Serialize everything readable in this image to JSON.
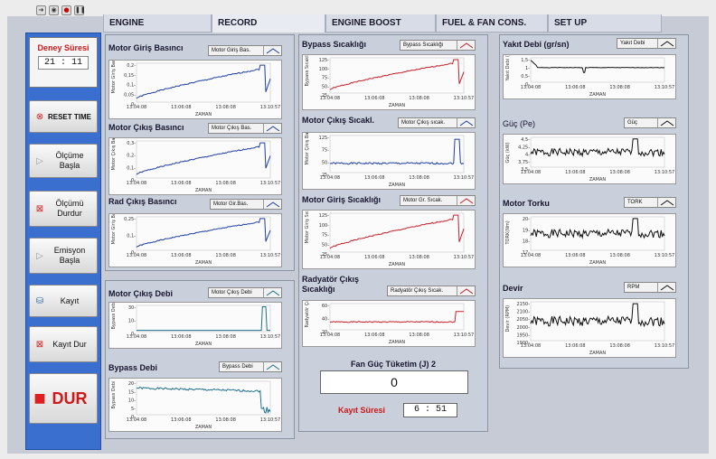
{
  "toolbar": {
    "icons": [
      "arrow-icon",
      "stop-icon",
      "record-icon",
      "pause-icon"
    ]
  },
  "tabs": [
    "ENGINE",
    "RECORD",
    "ENGINE BOOST",
    "FUEL & FAN CONS.",
    "SET UP"
  ],
  "left": {
    "deney_title": "Deney Süresi",
    "deney_value": "21  :  11",
    "buttons": [
      {
        "name": "reset-time-button",
        "label": "RESET TIME",
        "icon": "x-circle-icon"
      },
      {
        "name": "olcume-basla-button",
        "label": "Ölçüme Başla",
        "icon": "play-icon"
      },
      {
        "name": "olcumu-durdur-button",
        "label": "Ölçümü Durdur",
        "icon": "stop-square-icon"
      },
      {
        "name": "emisyon-basla-button",
        "label": "Emisyon Başla",
        "icon": "play-icon"
      },
      {
        "name": "kayit-button",
        "label": "Kayıt",
        "icon": "disk-icon"
      },
      {
        "name": "kayit-dur-button",
        "label": "Kayıt Dur",
        "icon": "stop-square-icon"
      },
      {
        "name": "dur-button",
        "label": "DUR",
        "icon": "stop-square-icon"
      }
    ]
  },
  "xticks": [
    "13:04:08",
    "13:06:08",
    "13:08:08",
    "13:10:57"
  ],
  "xlabel": "ZAMAN",
  "graphs": [
    {
      "id": "g1",
      "title": "Motor Giriş Basıncı",
      "legend": "Motor Giriş Bas.",
      "ylabel": "Motor Giriş Bas.",
      "yticks": [
        "0,2-",
        "0,15-",
        "0,1-",
        "0,05-",
        "0-"
      ],
      "color": "#1d3fa6"
    },
    {
      "id": "g2",
      "title": "Motor Çıkış Basıncı",
      "legend": "Motor Çıkış Bas.",
      "ylabel": "Motor Çıkış Bas.",
      "yticks": [
        "0,3-",
        "0,2-",
        "0,1-",
        "0-"
      ],
      "color": "#1d3fa6"
    },
    {
      "id": "g3",
      "title": "Rad Çıkış Basıncı",
      "legend": "Motor Gir.Bas.",
      "ylabel": "Motor Giriş Bas.",
      "yticks": [
        "0,25-",
        "0,1-",
        "0-"
      ],
      "color": "#1d3fa6"
    },
    {
      "id": "g4",
      "title": "Motor Çıkış Debi",
      "legend": "Motor Çıkış Debi",
      "ylabel": "Bypass Debi",
      "yticks": [
        "30-",
        "10-",
        "0-"
      ],
      "color": "#1e6f8f"
    },
    {
      "id": "g5",
      "title": "Bypass Debi",
      "legend": "Bypass Debi",
      "ylabel": "Bypass Debi",
      "yticks": [
        "20-",
        "15-",
        "10-",
        "5-",
        "0-"
      ],
      "color": "#1e6f8f"
    },
    {
      "id": "g6",
      "title": "Bypass Sıcaklığı",
      "legend": "Bypass Sıcaklığı",
      "ylabel": "Bypass Sıcaklığı",
      "yticks": [
        "125-",
        "100-",
        "75-",
        "50-",
        "25-"
      ],
      "color": "#c8202a"
    },
    {
      "id": "g7",
      "title": "Motor Çıkış Sıcakl.",
      "legend": "Motor Çıkış sıcak.",
      "ylabel": "Motor Çıkış Bas.",
      "yticks": [
        "125-",
        "75-",
        "50-",
        "25-"
      ],
      "color": "#1d3fa6"
    },
    {
      "id": "g8",
      "title": "Motor Giriş Sıcaklığı",
      "legend": "Motor Gr. Sıcak.",
      "ylabel": "Motor Giriş Sıcak",
      "yticks": [
        "125-",
        "100-",
        "75-",
        "50-",
        "25-"
      ],
      "color": "#c8202a"
    },
    {
      "id": "g9",
      "title": "Radyatör Çıkış Sıcaklığı",
      "legend": "Radyatör Çıkış Sıcak.",
      "ylabel": "Radyatör Çıkış Sıcaklığı",
      "yticks": [
        "60-",
        "40-",
        "20-"
      ],
      "color": "#c8202a"
    },
    {
      "id": "g10",
      "title": "Yakıt Debi (gr/sn)",
      "legend": "Yakıt Debi",
      "ylabel": "Yakıt Debi (gr/s)",
      "yticks": [
        "1,5-",
        "1-",
        "0,5-",
        "0-"
      ],
      "color": "#111111"
    },
    {
      "id": "g11",
      "title": "Güç (Pe)",
      "legend": "Güç",
      "ylabel": "Güç (kW)",
      "yticks": [
        "4,5-",
        "4,25-",
        "4-",
        "3,75-",
        "3,5-"
      ],
      "color": "#111111"
    },
    {
      "id": "g12",
      "title": "Motor Torku",
      "legend": "TORK",
      "ylabel": "TORK(Nm)",
      "yticks": [
        "20-",
        "19-",
        "18-",
        "17-"
      ],
      "color": "#111111"
    },
    {
      "id": "g13",
      "title": "Devir",
      "legend": "RPM",
      "ylabel": "Devir (RPM)",
      "yticks": [
        "2150-",
        "2100-",
        "2050-",
        "2000-",
        "1950-",
        "1900-"
      ],
      "color": "#111111"
    }
  ],
  "fan": {
    "title": "Fan Güç Tüketim (J) 2",
    "value": "0"
  },
  "kayit_suresi": {
    "label": "Kayıt Süresi",
    "value": "6  :  51"
  }
}
